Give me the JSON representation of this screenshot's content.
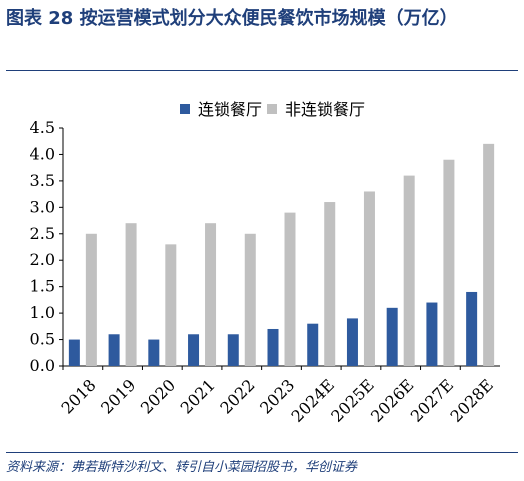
{
  "title": "图表 28  按运营模式划分大众便民餐饮市场规模（万亿）",
  "source": "资料来源：弗若斯特沙利文、转引自小菜园招股书，华创证券",
  "chart_data": {
    "type": "bar",
    "categories": [
      "2018",
      "2019",
      "2020",
      "2021",
      "2022",
      "2023",
      "2024E",
      "2025E",
      "2026E",
      "2027E",
      "2028E"
    ],
    "series": [
      {
        "name": "连锁餐厅",
        "color": "#2e5a9e",
        "values": [
          0.5,
          0.6,
          0.5,
          0.6,
          0.6,
          0.7,
          0.8,
          0.9,
          1.1,
          1.2,
          1.4
        ]
      },
      {
        "name": "非连锁餐厅",
        "color": "#c0c0c0",
        "values": [
          2.5,
          2.7,
          2.3,
          2.7,
          2.5,
          2.9,
          3.1,
          3.3,
          3.6,
          3.9,
          4.2
        ]
      }
    ],
    "ylim": [
      0,
      4.5
    ],
    "yticks": [
      "0.0",
      "0.5",
      "1.0",
      "1.5",
      "2.0",
      "2.5",
      "3.0",
      "3.5",
      "4.0",
      "4.5"
    ],
    "grid": false,
    "legend": "top",
    "xlabel": "",
    "ylabel": ""
  }
}
